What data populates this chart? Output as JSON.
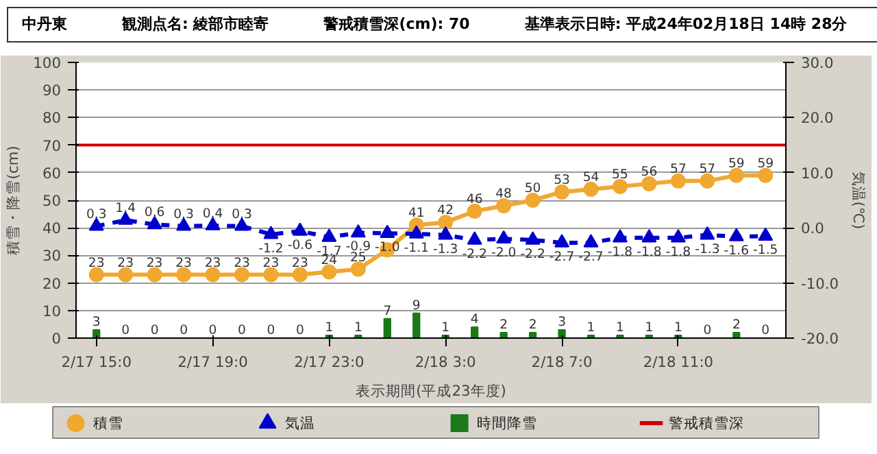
{
  "chart_data": {
    "type": "line",
    "title": "中丹東",
    "subtitle": "観測点名: 綾部市睦寄",
    "annotations": [
      "警戒積雪深(cm): 70",
      "基準表示日時: 平成24年02月18日 14時 28分"
    ],
    "xlabel": "表示期間(平成23年度)",
    "ylabel": "積雪・降雪(cm)",
    "y2label": "気温(℃)",
    "categories": [
      "2/17 15:0",
      null,
      null,
      null,
      "2/17 19:0",
      null,
      null,
      null,
      "2/17 23:0",
      null,
      null,
      null,
      "2/18 3:0",
      null,
      null,
      null,
      "2/18 7:0",
      null,
      null,
      null,
      "2/18 11:0",
      null,
      null,
      null
    ],
    "series": [
      {
        "name": "積雪",
        "color": "#f0a830",
        "marker": "circle",
        "line_style": "solid",
        "values": [
          23,
          23,
          23,
          23,
          23,
          23,
          23,
          23,
          24,
          25,
          32,
          41,
          42,
          46,
          48,
          50,
          53,
          54,
          55,
          56,
          57,
          57,
          59,
          59
        ],
        "value_labels": [
          "23",
          "23",
          "23",
          "23",
          "23",
          "23",
          "23",
          "23",
          "24",
          "25",
          null,
          "41",
          "42",
          "46",
          "48",
          "50",
          "53",
          "54",
          "55",
          "56",
          "57",
          "57",
          "59",
          "59"
        ]
      },
      {
        "name": "気温",
        "type": "line",
        "axis": "y2",
        "color": "#0000cc",
        "marker": "triangle",
        "line_style": "dashed",
        "values": [
          0.3,
          1.4,
          0.6,
          0.3,
          0.4,
          0.3,
          -1.2,
          -0.6,
          -1.7,
          -0.9,
          -1.0,
          -1.1,
          -1.3,
          -2.2,
          -2.0,
          -2.2,
          -2.7,
          -2.7,
          -1.8,
          -1.8,
          -1.8,
          -1.3,
          -1.6,
          -1.5
        ],
        "value_labels": [
          "0.3",
          "1.4",
          "0.6",
          "0.3",
          "0.4",
          "0.3",
          "-1.2",
          "-0.6",
          "-1.7",
          "-0.9",
          "-1.0",
          "-1.1",
          "-1.3",
          "-2.2",
          "-2.0",
          "-2.2",
          "-2.7",
          "-2.7",
          "-1.8",
          "-1.8",
          "-1.8",
          "-1.3",
          "-1.6",
          "-1.5"
        ]
      },
      {
        "name": "時間降雪",
        "type": "bar",
        "color": "#1a7a1a",
        "values": [
          3,
          0,
          0,
          0,
          0,
          0,
          0,
          0,
          1,
          1,
          7,
          9,
          1,
          4,
          2,
          2,
          3,
          1,
          1,
          1,
          1,
          0,
          2,
          0
        ],
        "value_labels": [
          "3",
          "0",
          "0",
          "0",
          "0",
          "0",
          "0",
          "0",
          "1",
          "1",
          "7",
          "9",
          "1",
          "4",
          "2",
          "2",
          "3",
          "1",
          "1",
          "1",
          "1",
          "0",
          "2",
          "0"
        ]
      }
    ],
    "ref_lines": [
      {
        "axis": "y",
        "value": 70,
        "label": "警戒積雪深",
        "color": "#cc0000"
      }
    ],
    "ylim": [
      0,
      100
    ],
    "yticks": [
      0,
      10,
      20,
      30,
      40,
      50,
      60,
      70,
      80,
      90,
      100
    ],
    "y2lim": [
      -20,
      30
    ],
    "y2ticks": [
      {
        "value": -20,
        "label": "-20.0"
      },
      {
        "value": -10,
        "label": "-10.0"
      },
      {
        "value": 0,
        "label": "0.0"
      },
      {
        "value": 10,
        "label": "10.0"
      },
      {
        "value": 20,
        "label": "20.0"
      },
      {
        "value": 30,
        "label": "30.0"
      }
    ],
    "grid": "y",
    "legend": "bottom"
  }
}
